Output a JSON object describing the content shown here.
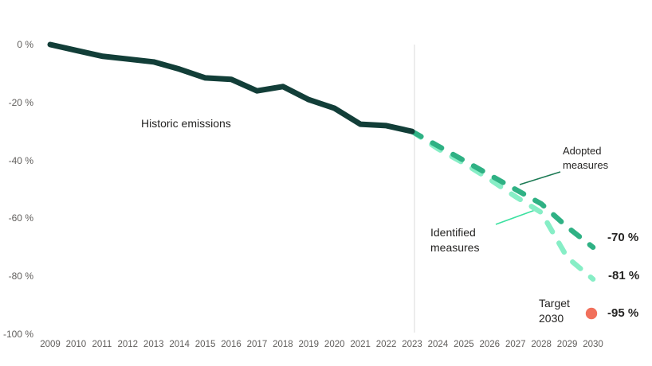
{
  "chart_data": {
    "type": "line",
    "title": "",
    "xlabel": "",
    "ylabel": "",
    "x_range": [
      2009,
      2030
    ],
    "ylim": [
      -100,
      0
    ],
    "grid": false,
    "y_ticks": [
      {
        "value": 0,
        "label": "0 %"
      },
      {
        "value": -20,
        "label": "-20 %"
      },
      {
        "value": -40,
        "label": "-40 %"
      },
      {
        "value": -60,
        "label": "-60 %"
      },
      {
        "value": -80,
        "label": "-80 %"
      },
      {
        "value": -100,
        "label": "-100 %"
      }
    ],
    "x_ticks": [
      2009,
      2010,
      2011,
      2012,
      2013,
      2014,
      2015,
      2016,
      2017,
      2018,
      2019,
      2020,
      2021,
      2022,
      2023,
      2024,
      2025,
      2026,
      2027,
      2028,
      2029,
      2030
    ],
    "reference_line_year": 2023,
    "series": [
      {
        "name": "Historic emissions",
        "style": "solid",
        "color": "#123e38",
        "years": [
          2009,
          2010,
          2011,
          2012,
          2013,
          2014,
          2015,
          2016,
          2017,
          2018,
          2019,
          2020,
          2021,
          2022,
          2023
        ],
        "values": [
          0,
          -2,
          -4,
          -5,
          -6,
          -8.5,
          -11.5,
          -12,
          -16,
          -14.5,
          -19,
          -22,
          -27.5,
          -28,
          -30
        ]
      },
      {
        "name": "Adopted measures",
        "style": "dashed",
        "color": "#2fb184",
        "years": [
          2023,
          2024,
          2025,
          2026,
          2027,
          2028,
          2029,
          2030
        ],
        "values": [
          -30,
          -35,
          -40,
          -45,
          -50,
          -55,
          -63,
          -70
        ],
        "end_label": "-70 %"
      },
      {
        "name": "Identified measures",
        "style": "dashed",
        "color": "#87eec6",
        "years": [
          2023,
          2024,
          2025,
          2026,
          2027,
          2028,
          2029,
          2030
        ],
        "values": [
          -30,
          -36,
          -41,
          -46.5,
          -52.5,
          -58,
          -73.5,
          -81
        ],
        "end_label": "-81 %"
      }
    ],
    "target": {
      "name": "Target 2030",
      "year": 2030,
      "value": -95,
      "end_label": "-95 %",
      "marker": "dot",
      "color": "#f1705c"
    }
  },
  "annotations": {
    "historic": "Historic emissions",
    "adopted": "Adopted measures",
    "identified": "Identified measures",
    "target": "Target 2030"
  },
  "colors": {
    "historic_line": "#123e38",
    "adopted_line": "#2fb184",
    "identified_line": "#87eec6",
    "adopted_callout": "#1c7a54",
    "identified_callout": "#3ce1a1",
    "target_dot": "#f1705c",
    "axis_text": "#605e5c",
    "annotation_text": "#252423",
    "reference_line": "#e8e8e8"
  }
}
